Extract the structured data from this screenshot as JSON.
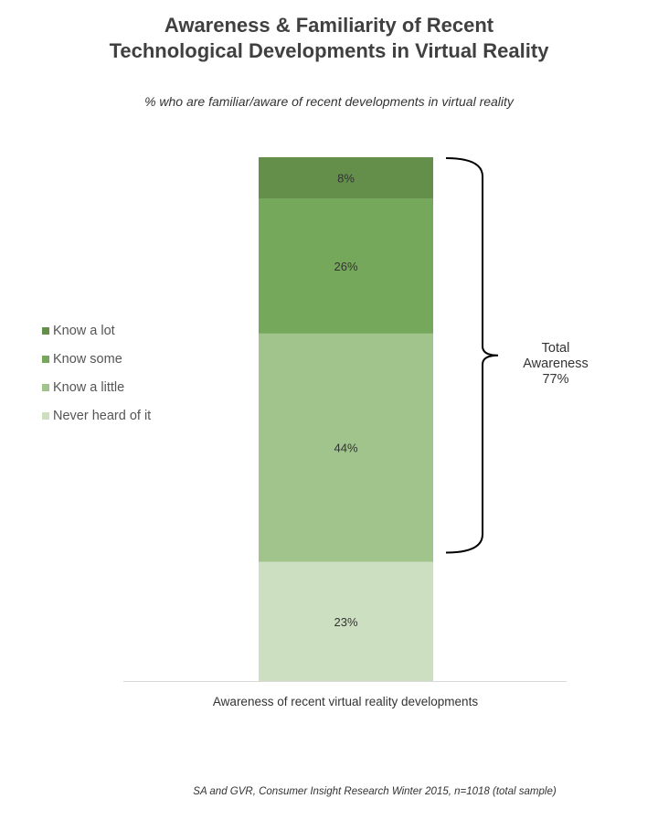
{
  "chart_data": {
    "type": "bar",
    "stacked": true,
    "title_lines": [
      "Awareness & Familiarity of Recent",
      "Technological Developments in Virtual Reality"
    ],
    "subtitle": "% who are familiar/aware of recent developments in virtual reality",
    "xlabel": "Awareness of recent virtual reality developments",
    "ylabel": "",
    "categories": [
      "Awareness of recent virtual reality developments"
    ],
    "series": [
      {
        "name": "Never heard of it",
        "values": [
          23
        ],
        "label": "23%",
        "color": "#cddfc1"
      },
      {
        "name": "Know a little",
        "values": [
          44
        ],
        "label": "44%",
        "color": "#a1c48c"
      },
      {
        "name": "Know some",
        "values": [
          26
        ],
        "label": "26%",
        "color": "#76a85b"
      },
      {
        "name": "Know a lot",
        "values": [
          8
        ],
        "label": "8%",
        "color": "#638f4b"
      }
    ],
    "legend_order": [
      "Know a lot",
      "Know some",
      "Know a little",
      "Never heard of it"
    ],
    "legend_position": "left",
    "grid": false,
    "annotation": {
      "lines": [
        "Total",
        "Awareness",
        "77%"
      ]
    }
  },
  "source": "SA and GVR, Consumer Insight Research Winter 2015, n=1018 (total sample)"
}
